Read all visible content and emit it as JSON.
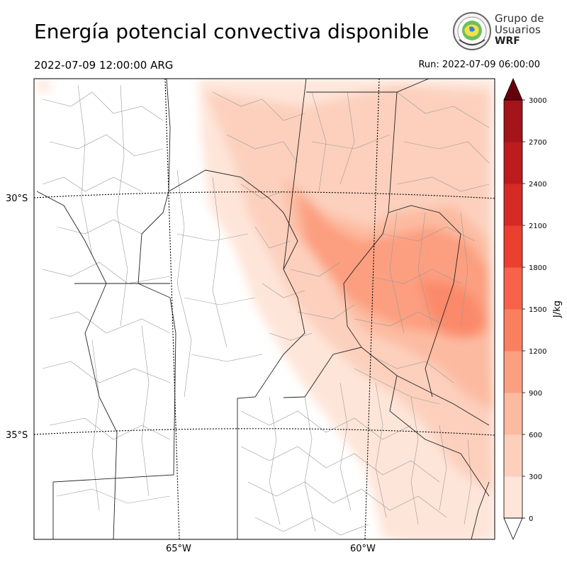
{
  "header": {
    "title": "Energía potencial convectiva disponible",
    "valid_time": "2022-07-09 12:00:00 ARG",
    "run_time": "Run: 2022-07-09 06:00:00"
  },
  "logo": {
    "line1": "Grupo de",
    "line2": "Usuarios",
    "line3": "WRF",
    "icon": "seal-globe-icon"
  },
  "map": {
    "lat_labels": [
      "30°S",
      "35°S"
    ],
    "lon_labels": [
      "65°W",
      "60°W"
    ],
    "field": "CAPE",
    "palette": "Reds"
  },
  "colorbar": {
    "unit_label": "J/kg",
    "levels": [
      0,
      300,
      600,
      900,
      1200,
      1500,
      1800,
      2100,
      2400,
      2700,
      3000
    ],
    "colors": [
      "#fee5d9",
      "#fcd0bd",
      "#fcbba1",
      "#fc9f80",
      "#fb8060",
      "#f6634a",
      "#e9402f",
      "#d42b26",
      "#bd1b1d",
      "#a3141b",
      "#850d16"
    ],
    "extend": "both",
    "over_color": "#67000d",
    "under_color": "#ffffff"
  }
}
